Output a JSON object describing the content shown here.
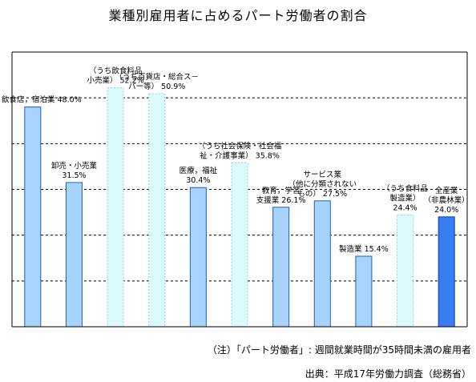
{
  "title": "業種別雇用者に占めるパート労働者の割合",
  "notes": {
    "definition": "（注）「パート労働者」: 週間就業時間が35時間未満の雇用者",
    "source": "出典：平成17年労働力調査（総務省）"
  },
  "colors": {
    "main_fill": "#a9d3ff",
    "main_stroke": "#1f5fb8",
    "sub_fill": "#dcfbff",
    "sub_stroke": "#7fd4ea",
    "total_fill": "#3a7cf2",
    "total_stroke": "#0a3fa8",
    "grid": "#000000"
  },
  "chart_data": {
    "type": "bar",
    "title": "業種別雇用者に占めるパート労働者の割合",
    "ylim": [
      0,
      60
    ],
    "gridlines": [
      10,
      20,
      30,
      40,
      50
    ],
    "grid": "dashed-horizontal",
    "unit": "%",
    "series": [
      {
        "category": "飲食店，宿泊業",
        "value": 48.0,
        "kind": "main",
        "label_lines": [
          "飲食店，宿泊業 48.0%"
        ]
      },
      {
        "category": "卸売・小売業",
        "value": 31.5,
        "kind": "main",
        "label_lines": [
          "卸売・小売業",
          "31.5%"
        ]
      },
      {
        "category": "（うち飲食料品小売業）",
        "value": 52.2,
        "kind": "sub",
        "label_lines": [
          "（うち飲食料品",
          "小売業） 52.2%"
        ]
      },
      {
        "category": "（うち百貨店・総合スーパー等）",
        "value": 50.9,
        "kind": "sub",
        "label_lines": [
          "（うち百貨店・総合ス－",
          "パー等） 50.9%"
        ]
      },
      {
        "category": "医療，福祉",
        "value": 30.4,
        "kind": "main",
        "label_lines": [
          "医療，福祉",
          "30.4%"
        ]
      },
      {
        "category": "（うち社会保険・社会福祉・介護事業）",
        "value": 35.8,
        "kind": "sub",
        "label_lines": [
          "（うち社会保険・社会福",
          "祉・介護事業） 35.8%"
        ]
      },
      {
        "category": "教育，学習支援業",
        "value": 26.1,
        "kind": "main",
        "label_lines": [
          "教育，学習",
          "支援業 26.1%"
        ]
      },
      {
        "category": "サービス業（他に分類されないもの）",
        "value": 27.5,
        "kind": "main",
        "label_lines": [
          "サービス業",
          "（他に分類されない",
          "もの） 27.5%"
        ]
      },
      {
        "category": "製造業",
        "value": 15.4,
        "kind": "main",
        "label_lines": [
          "製造業 15.4%"
        ]
      },
      {
        "category": "（うち食料品製造業）",
        "value": 24.4,
        "kind": "sub",
        "label_lines": [
          "（うち食料品",
          "製造業）",
          "24.4%"
        ]
      },
      {
        "category": "全産業（非農林業）",
        "value": 24.0,
        "kind": "total",
        "label_lines": [
          "全産業",
          "（非農林業）",
          "24.0%"
        ]
      }
    ]
  }
}
